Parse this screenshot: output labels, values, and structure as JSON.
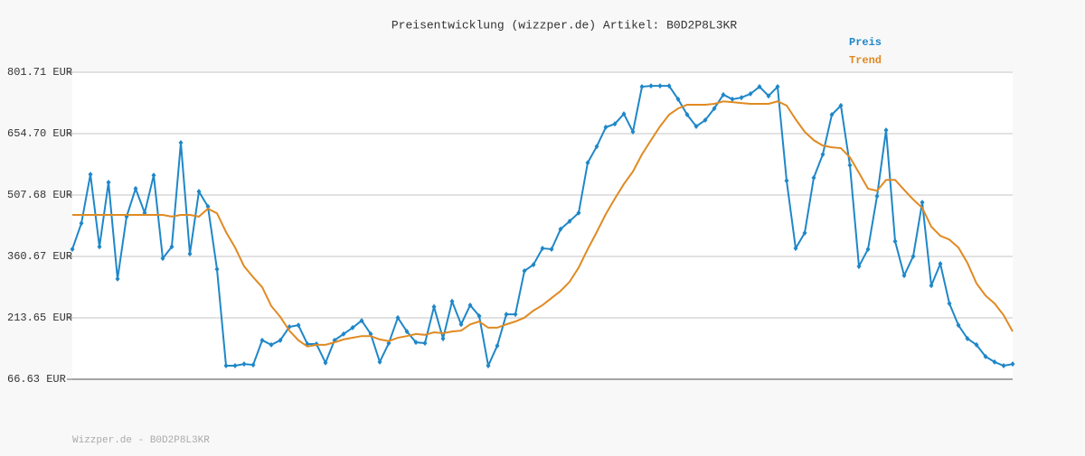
{
  "chart_data": {
    "type": "line",
    "title": "Preisentwicklung (wizzper.de) Artikel: B0D2P8L3KR",
    "footer": "Wizzper.de - B0D2P8L3KR",
    "ylim": [
      66.63,
      801.71
    ],
    "yticks": [
      {
        "value": 66.63,
        "label": "66.63 EUR"
      },
      {
        "value": 213.65,
        "label": "213.65 EUR"
      },
      {
        "value": 360.67,
        "label": "360.67 EUR"
      },
      {
        "value": 507.68,
        "label": "507.68 EUR"
      },
      {
        "value": 654.7,
        "label": "654.70 EUR"
      },
      {
        "value": 801.71,
        "label": "801.71 EUR"
      }
    ],
    "grid": true,
    "legend": "top-right",
    "series": [
      {
        "name": "Preis",
        "color": "#1f87c8",
        "markers": true,
        "values": [
          378,
          440,
          557,
          384,
          538,
          307,
          456,
          523,
          465,
          555,
          356,
          384,
          633,
          367,
          516,
          480,
          330,
          99,
          99,
          103,
          101,
          160,
          149,
          160,
          192,
          196,
          151,
          151,
          106,
          160,
          175,
          190,
          207,
          175,
          108,
          153,
          214,
          181,
          155,
          153,
          240,
          164,
          253,
          198,
          244,
          218,
          99,
          147,
          222,
          222,
          326,
          341,
          380,
          378,
          426,
          445,
          465,
          585,
          624,
          670,
          678,
          702,
          659,
          767,
          769,
          769,
          769,
          737,
          700,
          672,
          687,
          715,
          748,
          737,
          741,
          750,
          767,
          745,
          767,
          542,
          380,
          417,
          549,
          605,
          700,
          722,
          579,
          337,
          378,
          505,
          663,
          397,
          315,
          361,
          490,
          291,
          343,
          248,
          196,
          164,
          149,
          121,
          108,
          99,
          103
        ]
      },
      {
        "name": "Trend",
        "color": "#e08a22",
        "markers": false,
        "values": [
          460,
          460,
          460,
          460,
          460,
          460,
          460,
          460,
          460,
          460,
          460,
          456,
          460,
          460,
          456,
          475,
          464,
          419,
          382,
          337,
          311,
          287,
          242,
          216,
          183,
          160,
          145,
          149,
          149,
          155,
          162,
          166,
          170,
          170,
          162,
          158,
          166,
          170,
          175,
          173,
          179,
          177,
          181,
          183,
          198,
          205,
          190,
          190,
          198,
          205,
          214,
          231,
          244,
          261,
          278,
          300,
          334,
          378,
          419,
          462,
          499,
          534,
          564,
          605,
          639,
          672,
          700,
          715,
          724,
          724,
          724,
          726,
          732,
          730,
          728,
          726,
          726,
          726,
          732,
          722,
          689,
          659,
          639,
          626,
          622,
          620,
          598,
          561,
          523,
          518,
          544,
          544,
          520,
          497,
          477,
          432,
          410,
          401,
          382,
          345,
          296,
          267,
          248,
          220,
          181
        ]
      }
    ]
  }
}
